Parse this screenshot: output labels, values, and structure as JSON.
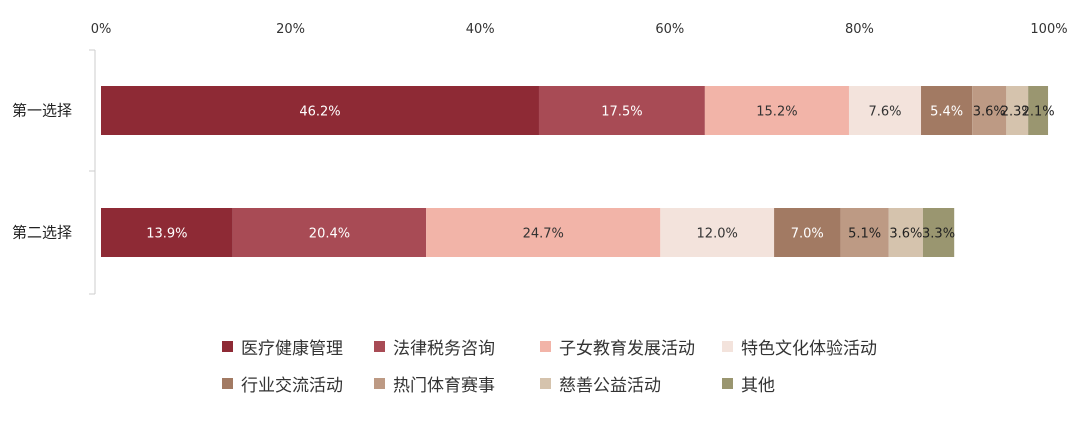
{
  "chart_data": {
    "type": "bar",
    "orientation": "horizontal",
    "stacked": true,
    "categories": [
      "第一选择",
      "第二选择"
    ],
    "xlim": [
      0,
      100
    ],
    "x_ticks": [
      "0%",
      "20%",
      "40%",
      "60%",
      "80%",
      "100%"
    ],
    "series": [
      {
        "name": "医疗健康管理",
        "color": "#8e2a35",
        "values": [
          46.2,
          13.9
        ],
        "labels": [
          "46.2%",
          "13.9%"
        ]
      },
      {
        "name": "法律税务咨询",
        "color": "#a84b55",
        "values": [
          17.5,
          20.4
        ],
        "labels": [
          "17.5%",
          "20.4%"
        ]
      },
      {
        "name": "子女教育发展活动",
        "color": "#f2b4a8",
        "values": [
          15.2,
          24.7
        ],
        "labels": [
          "15.2%",
          "24.7%"
        ]
      },
      {
        "name": "特色文化体验活动",
        "color": "#f3e3dc",
        "values": [
          7.6,
          12.0
        ],
        "labels": [
          "7.6%",
          "12.0%"
        ]
      },
      {
        "name": "行业交流活动",
        "color": "#a27a63",
        "values": [
          5.4,
          7.0
        ],
        "labels": [
          "5.4%",
          "7.0%"
        ]
      },
      {
        "name": "热门体育赛事",
        "color": "#bd9a84",
        "values": [
          3.6,
          5.1
        ],
        "labels": [
          "3.6%",
          "5.1%"
        ]
      },
      {
        "name": "慈善公益活动",
        "color": "#d5c3ad",
        "values": [
          2.3,
          3.6
        ],
        "labels": [
          "2.3%",
          "3.6%"
        ]
      },
      {
        "name": "其他",
        "color": "#9a9670",
        "values": [
          2.1,
          3.3
        ],
        "labels": [
          "2.1%",
          "3.3%"
        ]
      }
    ],
    "grid": false,
    "legend_position": "bottom"
  }
}
